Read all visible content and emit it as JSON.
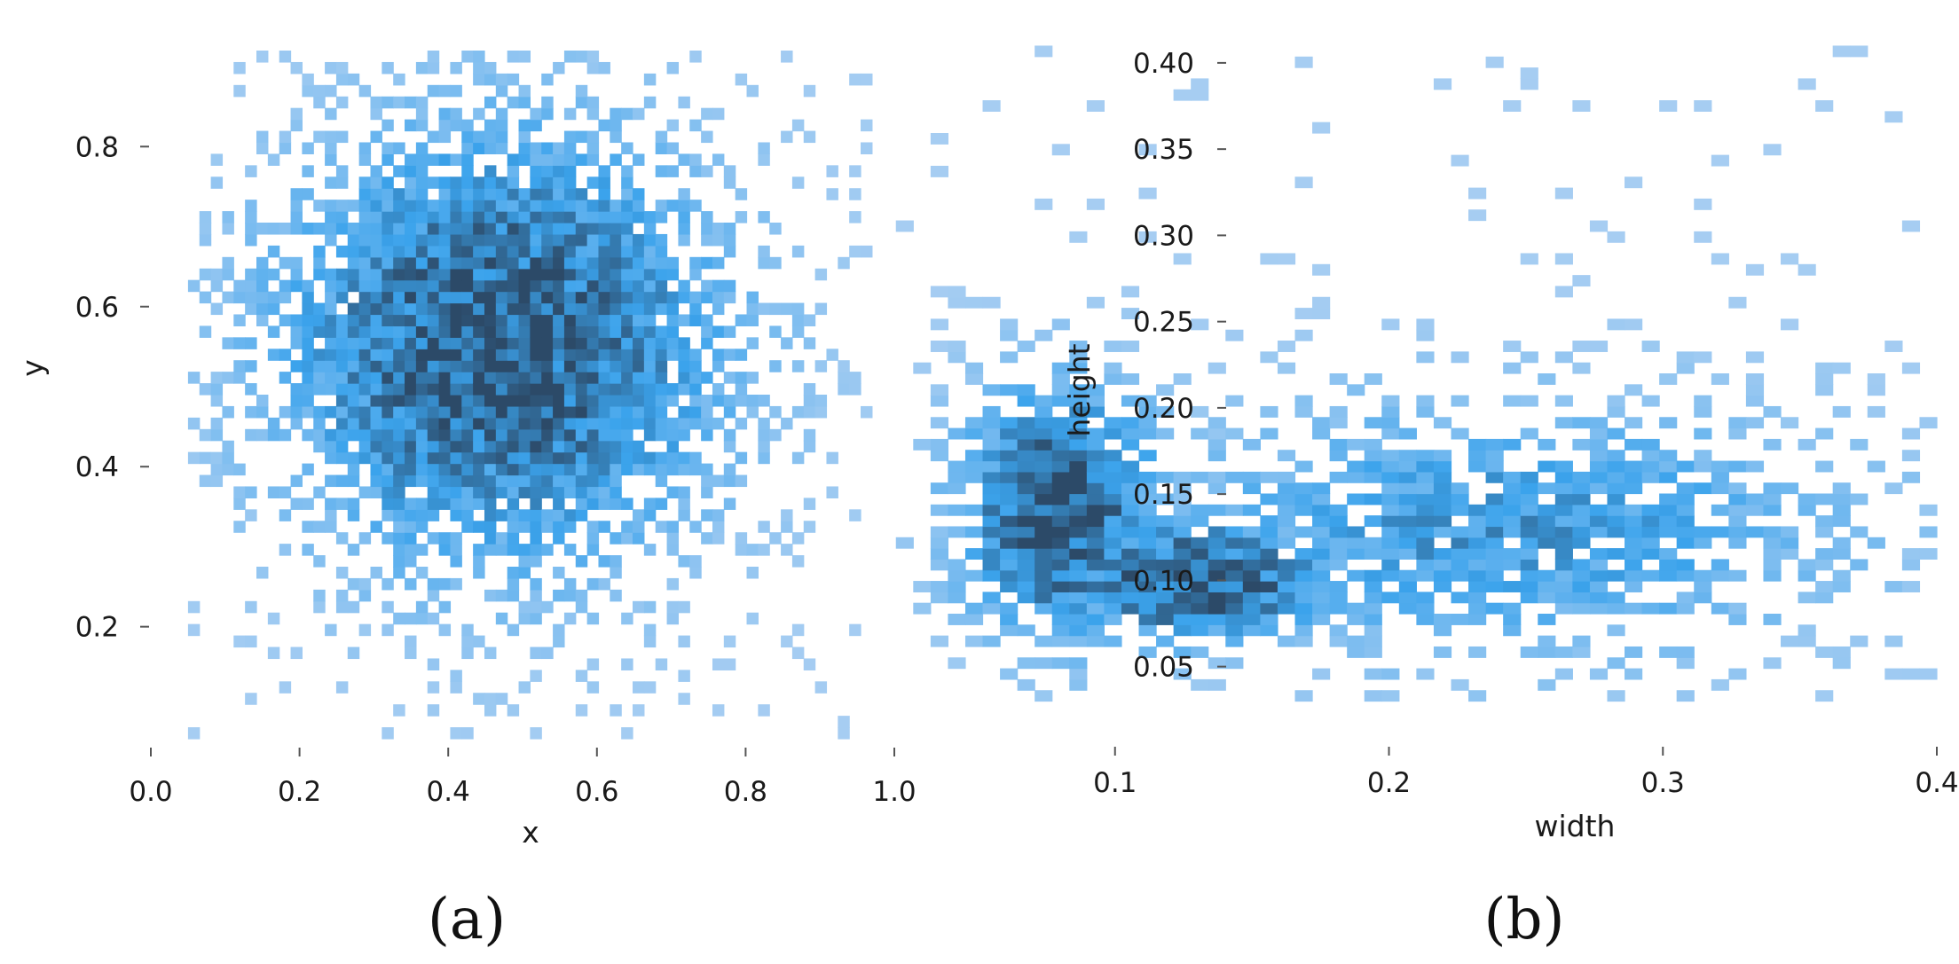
{
  "chart_data": [
    {
      "type": "heatmap",
      "panel_label": "(a)",
      "xlabel": "x",
      "ylabel": "y",
      "xlim": [
        0.0,
        1.0
      ],
      "ylim": [
        0.05,
        0.93
      ],
      "xticks": [
        "0.0",
        "0.2",
        "0.4",
        "0.6",
        "0.8",
        "1.0"
      ],
      "yticks": [
        "0.2",
        "0.4",
        "0.6",
        "0.8"
      ],
      "grid": false,
      "bins": [
        60,
        60
      ],
      "color_scale": [
        "#a6cdf2",
        "#3ba3ec",
        "#2c4a68"
      ],
      "density": {
        "center": [
          0.47,
          0.55
        ],
        "spread": [
          0.2,
          0.18
        ],
        "extent_x": [
          0.05,
          0.97
        ],
        "extent_y": [
          0.06,
          0.92
        ]
      }
    },
    {
      "type": "heatmap",
      "panel_label": "(b)",
      "xlabel": "width",
      "ylabel": "height",
      "xlim": [
        0.0,
        0.4
      ],
      "ylim": [
        0.02,
        0.42
      ],
      "xticks": [
        "0.1",
        "0.2",
        "0.3",
        "0.4"
      ],
      "yticks": [
        "0.05",
        "0.10",
        "0.15",
        "0.20",
        "0.25",
        "0.30",
        "0.35",
        "0.40"
      ],
      "grid": false,
      "bins": [
        60,
        60
      ],
      "color_scale": [
        "#a6cdf2",
        "#3ba3ec",
        "#2c4a68"
      ],
      "density": {
        "peaks": [
          {
            "center": [
              0.08,
              0.14
            ],
            "spread": [
              0.025,
              0.05
            ]
          },
          {
            "center": [
              0.13,
              0.1
            ],
            "spread": [
              0.035,
              0.025
            ]
          }
        ],
        "tail": {
          "center": [
            0.24,
            0.13
          ],
          "spread": [
            0.09,
            0.05
          ]
        },
        "extent_x": [
          0.02,
          0.4
        ],
        "extent_y": [
          0.03,
          0.41
        ]
      }
    }
  ]
}
